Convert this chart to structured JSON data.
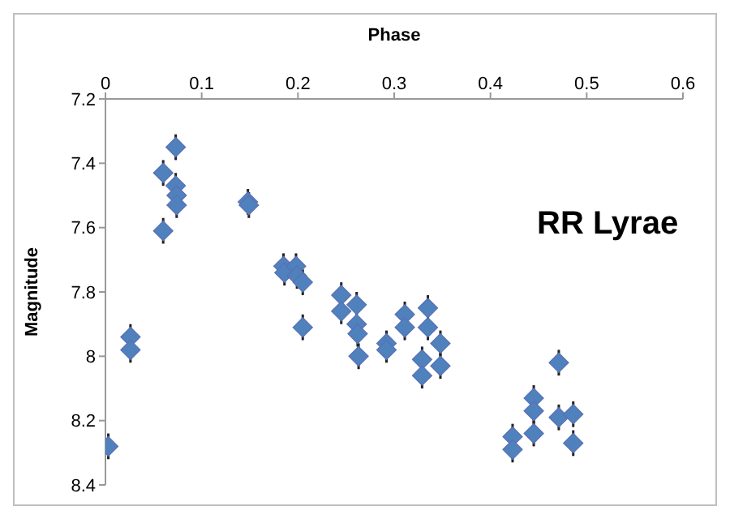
{
  "chart_data": {
    "type": "scatter",
    "xlabel": "Phase",
    "ylabel": "Magnitude",
    "annotations": [
      "RR Lyrae"
    ],
    "x": [
      0.003,
      0.026,
      0.026,
      0.06,
      0.06,
      0.073,
      0.073,
      0.074,
      0.074,
      0.148,
      0.149,
      0.185,
      0.186,
      0.198,
      0.199,
      0.205,
      0.205,
      0.245,
      0.245,
      0.261,
      0.261,
      0.262,
      0.263,
      0.292,
      0.292,
      0.311,
      0.311,
      0.335,
      0.335,
      0.329,
      0.329,
      0.348,
      0.348,
      0.471,
      0.445,
      0.445,
      0.471,
      0.486,
      0.423,
      0.423,
      0.445,
      0.486
    ],
    "series": [
      {
        "color": "#4f81bd",
        "values": [
          8.28,
          7.94,
          7.98,
          7.43,
          7.61,
          7.35,
          7.47,
          7.5,
          7.53,
          7.52,
          7.53,
          7.72,
          7.74,
          7.72,
          7.75,
          7.77,
          7.91,
          7.81,
          7.86,
          7.84,
          7.9,
          7.93,
          8.0,
          7.96,
          7.98,
          7.87,
          7.91,
          7.85,
          7.91,
          8.01,
          8.06,
          7.96,
          8.03,
          8.02,
          8.13,
          8.17,
          8.19,
          8.18,
          8.25,
          8.29,
          8.24,
          8.27
        ],
        "errors": [
          0.04,
          0.04,
          0.04,
          0.04,
          0.04,
          0.04,
          0.04,
          null,
          0.04,
          0.04,
          0.04,
          0.04,
          0.04,
          0.04,
          0.04,
          0.04,
          0.04,
          0.04,
          0.04,
          0.04,
          null,
          0.04,
          0.04,
          0.04,
          0.04,
          0.04,
          0.04,
          0.04,
          0.04,
          0.04,
          0.04,
          0.04,
          0.04,
          0.04,
          0.04,
          0.04,
          0.04,
          0.04,
          0.04,
          0.04,
          0.04,
          0.04
        ]
      }
    ],
    "xlim": [
      0,
      0.6
    ],
    "xticks": [
      0,
      0.1,
      0.2,
      0.3,
      0.4,
      0.5,
      0.6
    ],
    "ylim": [
      8.4,
      7.2
    ],
    "yticks": [
      7.2,
      7.4,
      7.6,
      7.8,
      8,
      8.2,
      8.4
    ],
    "grid": false,
    "legend": false,
    "marker": "diamond"
  }
}
